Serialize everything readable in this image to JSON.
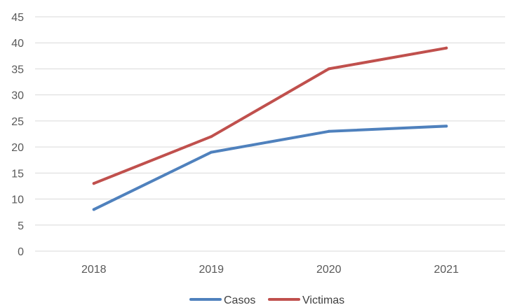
{
  "chart_data": {
    "type": "line",
    "title": "",
    "xlabel": "",
    "ylabel": "",
    "categories": [
      "2018",
      "2019",
      "2020",
      "2021"
    ],
    "ylim": [
      0,
      45
    ],
    "yticks": [
      "0",
      "5",
      "10",
      "15",
      "20",
      "25",
      "30",
      "35",
      "40",
      "45"
    ],
    "grid": true,
    "legend_position": "bottom",
    "series": [
      {
        "name": "Casos",
        "color": "#4f81bd",
        "values": [
          8,
          19,
          23,
          24
        ]
      },
      {
        "name": "Victimas",
        "color": "#c0504d",
        "values": [
          13,
          22,
          35,
          39
        ]
      }
    ]
  }
}
